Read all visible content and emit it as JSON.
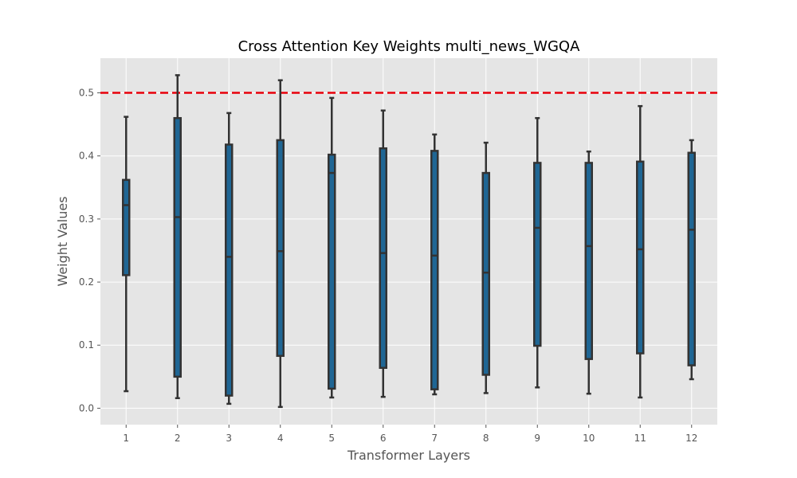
{
  "chart_data": {
    "type": "box",
    "title": "Cross Attention Key Weights multi_news_WGQA",
    "xlabel": "Transformer Layers",
    "ylabel": "Weight Values",
    "categories": [
      "1",
      "2",
      "3",
      "4",
      "5",
      "6",
      "7",
      "8",
      "9",
      "10",
      "11",
      "12"
    ],
    "ylim": [
      -0.026,
      0.555
    ],
    "yticks": [
      "0.0",
      "0.1",
      "0.2",
      "0.3",
      "0.4",
      "0.5"
    ],
    "yticks_values": [
      0.0,
      0.1,
      0.2,
      0.3,
      0.4,
      0.5
    ],
    "grid": true,
    "reference_line": {
      "y": 0.5,
      "style": "dashed",
      "color": "#e8000b"
    },
    "boxes": [
      {
        "layer": "1",
        "whislo": 0.027,
        "q1": 0.211,
        "med": 0.322,
        "q3": 0.362,
        "whishi": 0.462
      },
      {
        "layer": "2",
        "whislo": 0.016,
        "q1": 0.05,
        "med": 0.303,
        "q3": 0.46,
        "whishi": 0.528
      },
      {
        "layer": "3",
        "whislo": 0.007,
        "q1": 0.02,
        "med": 0.24,
        "q3": 0.418,
        "whishi": 0.468
      },
      {
        "layer": "4",
        "whislo": 0.002,
        "q1": 0.083,
        "med": 0.249,
        "q3": 0.425,
        "whishi": 0.52
      },
      {
        "layer": "5",
        "whislo": 0.017,
        "q1": 0.031,
        "med": 0.373,
        "q3": 0.402,
        "whishi": 0.492
      },
      {
        "layer": "6",
        "whislo": 0.018,
        "q1": 0.064,
        "med": 0.246,
        "q3": 0.412,
        "whishi": 0.472
      },
      {
        "layer": "7",
        "whislo": 0.022,
        "q1": 0.03,
        "med": 0.242,
        "q3": 0.408,
        "whishi": 0.434
      },
      {
        "layer": "8",
        "whislo": 0.024,
        "q1": 0.053,
        "med": 0.215,
        "q3": 0.373,
        "whishi": 0.421
      },
      {
        "layer": "9",
        "whislo": 0.033,
        "q1": 0.099,
        "med": 0.286,
        "q3": 0.389,
        "whishi": 0.46
      },
      {
        "layer": "10",
        "whislo": 0.023,
        "q1": 0.078,
        "med": 0.257,
        "q3": 0.389,
        "whishi": 0.407
      },
      {
        "layer": "11",
        "whislo": 0.017,
        "q1": 0.087,
        "med": 0.252,
        "q3": 0.391,
        "whishi": 0.479
      },
      {
        "layer": "12",
        "whislo": 0.046,
        "q1": 0.068,
        "med": 0.283,
        "q3": 0.405,
        "whishi": 0.425
      }
    ],
    "colors": {
      "box_fill": "#1f6694",
      "box_edge": "#333333",
      "plot_bg": "#e5e5e5",
      "grid": "#ffffff",
      "reference_line": "#e8000b"
    }
  }
}
